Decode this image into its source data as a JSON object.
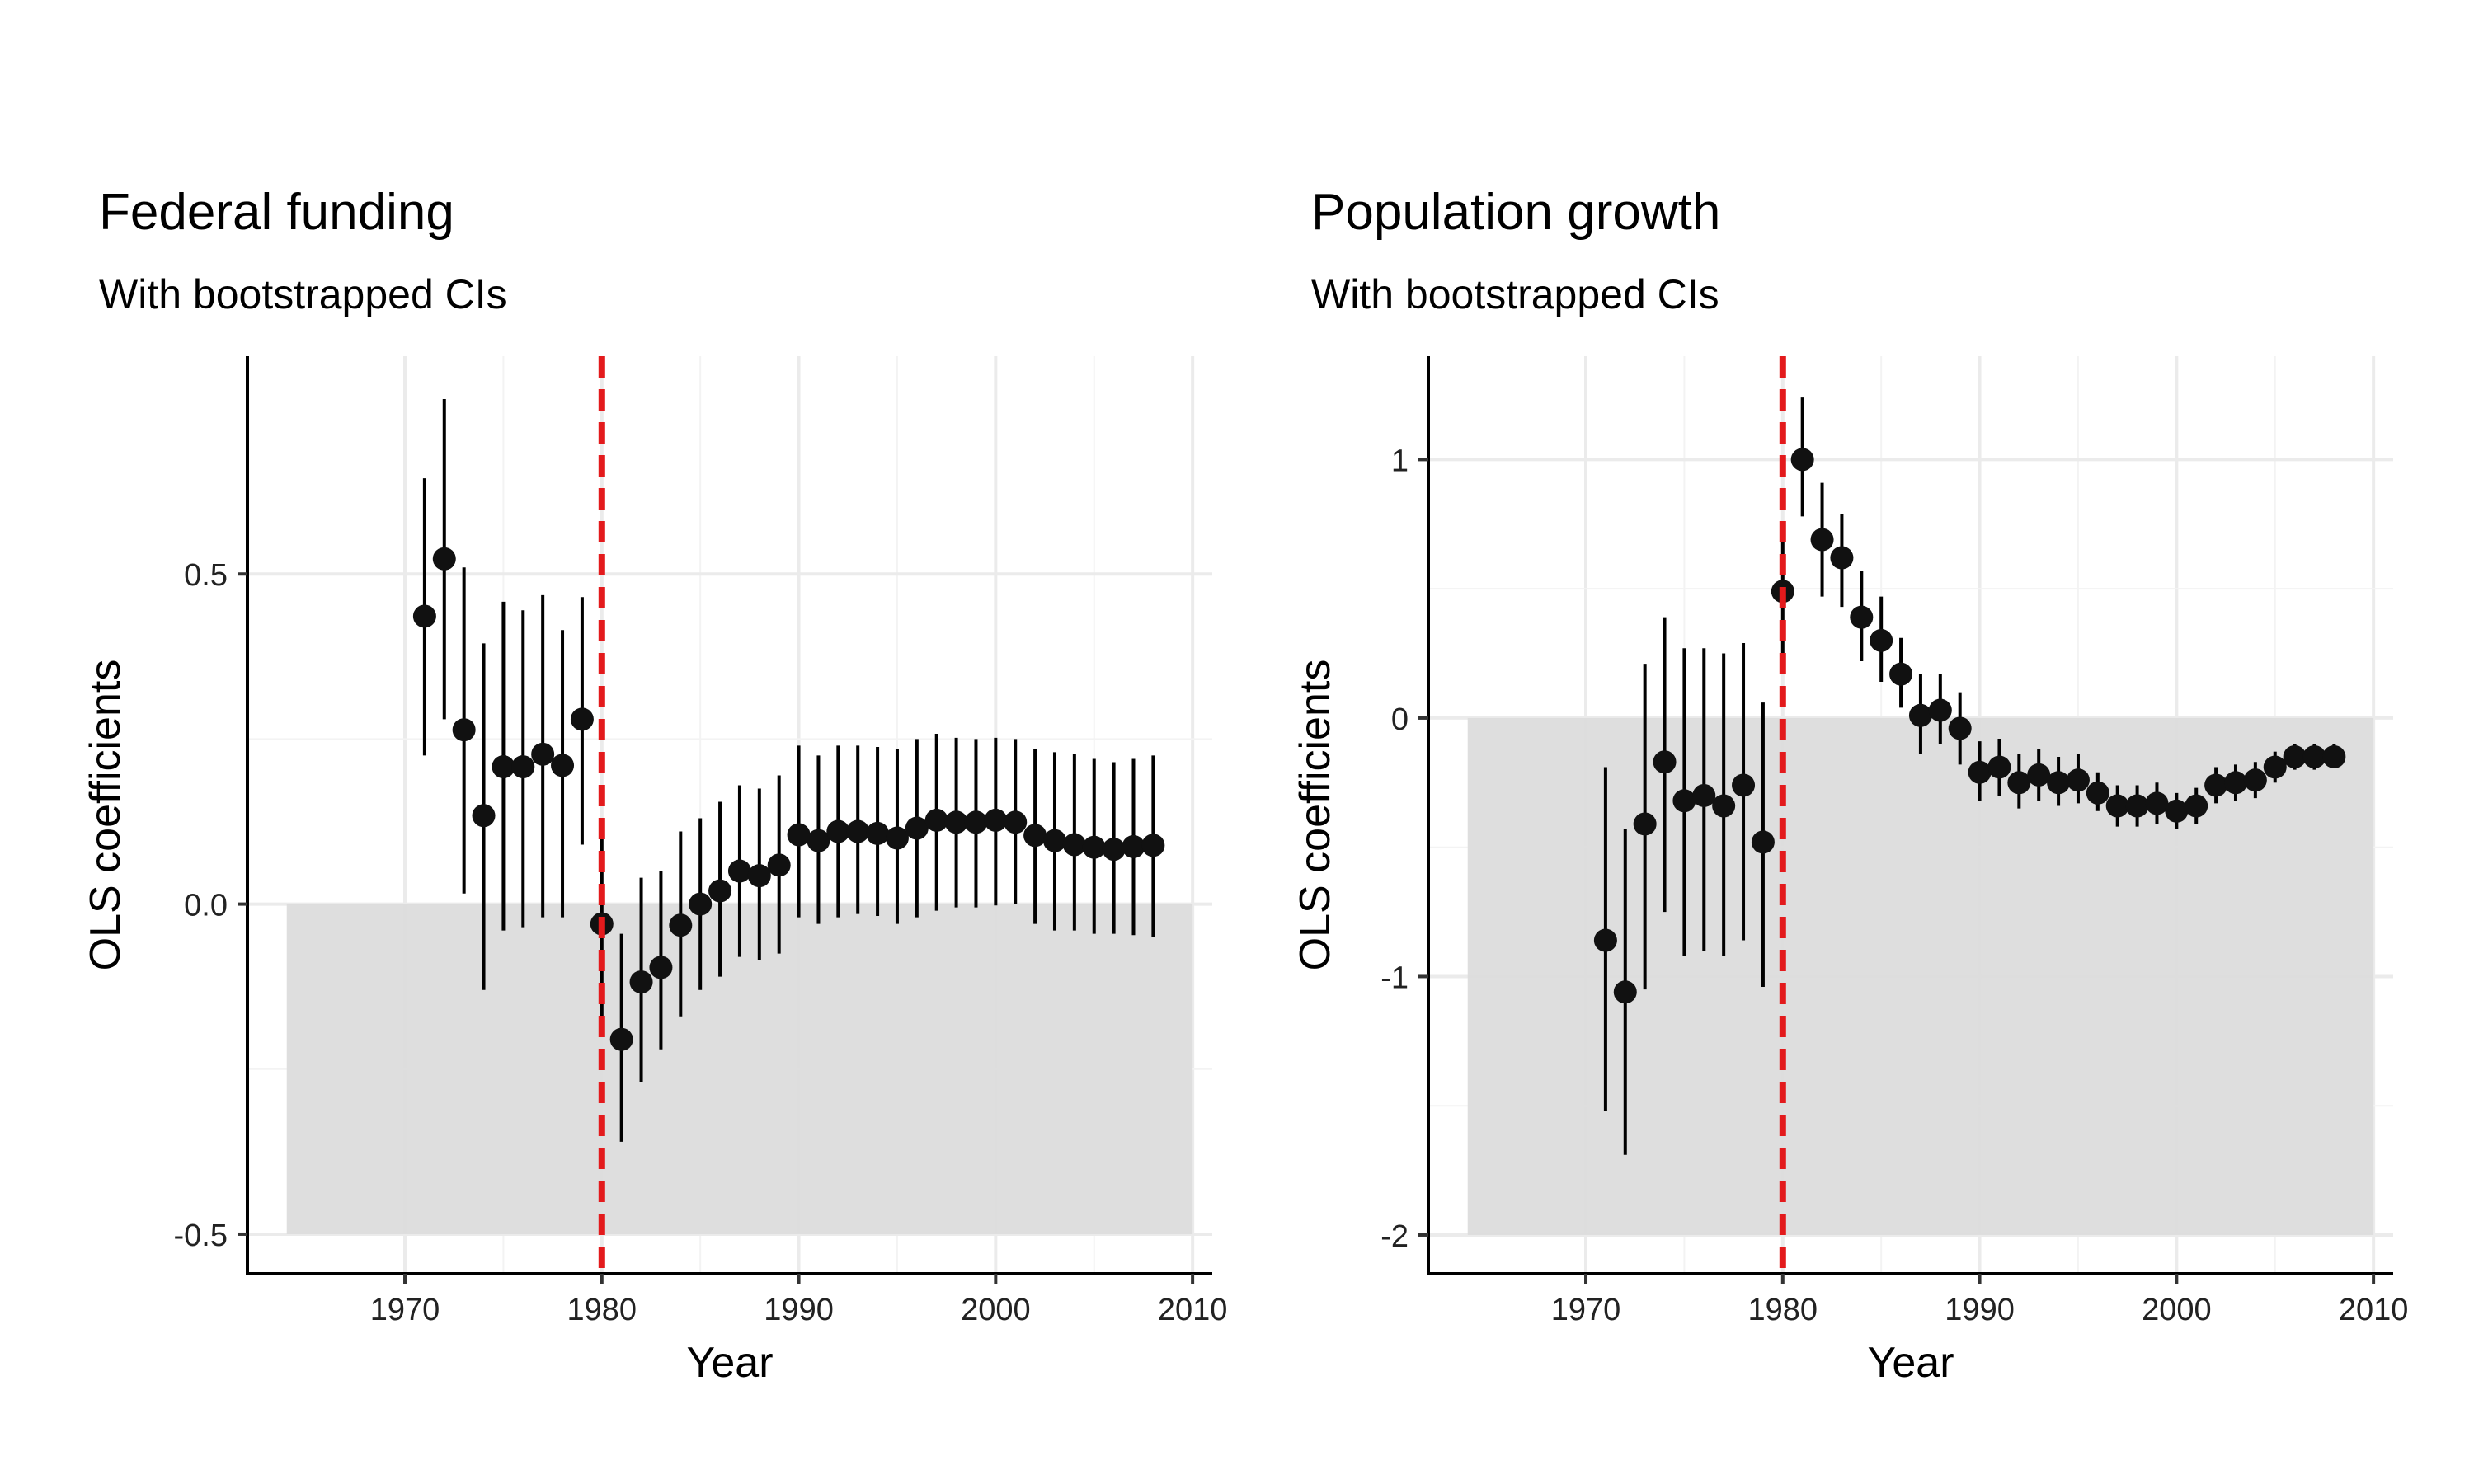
{
  "chart_data": [
    {
      "type": "scatter",
      "title": "Federal funding",
      "subtitle": "With bootstrapped CIs",
      "xlabel": "Year",
      "ylabel": "OLS coefficients",
      "xlim": [
        1962,
        2011
      ],
      "ylim": [
        -0.56,
        0.83
      ],
      "xticks": [
        1970,
        1980,
        1990,
        2000,
        2010
      ],
      "yticks": [
        -0.5,
        0.0,
        0.5
      ],
      "ytick_labels": [
        "-0.5",
        "0.0",
        "0.5"
      ],
      "grid": true,
      "vline": {
        "x": 1980,
        "color": "#e31a1c",
        "style": "dashed"
      },
      "shaded_region": {
        "x": [
          1964,
          2010
        ],
        "y": [
          -0.5,
          0.0
        ],
        "color": "#dcdcdc"
      },
      "series": [
        {
          "x": [
            1971,
            1972,
            1973,
            1974,
            1975,
            1976,
            1977,
            1978,
            1979,
            1980,
            1981,
            1982,
            1983,
            1984,
            1985,
            1986,
            1987,
            1988,
            1989,
            1990,
            1991,
            1992,
            1993,
            1994,
            1995,
            1996,
            1997,
            1998,
            1999,
            2000,
            2001,
            2002,
            2003,
            2004,
            2005,
            2006,
            2007,
            2008
          ],
          "y": [
            0.436,
            0.523,
            0.264,
            0.134,
            0.208,
            0.208,
            0.227,
            0.21,
            0.28,
            -0.03,
            -0.205,
            -0.118,
            -0.096,
            -0.032,
            0.0,
            0.02,
            0.05,
            0.043,
            0.059,
            0.105,
            0.096,
            0.11,
            0.11,
            0.107,
            0.1,
            0.115,
            0.127,
            0.124,
            0.124,
            0.127,
            0.124,
            0.104,
            0.096,
            0.09,
            0.086,
            0.083,
            0.087,
            0.089
          ],
          "ci_low": [
            0.225,
            0.28,
            0.016,
            -0.13,
            -0.04,
            -0.035,
            -0.02,
            -0.02,
            0.09,
            -0.2,
            -0.36,
            -0.27,
            -0.22,
            -0.17,
            -0.13,
            -0.11,
            -0.08,
            -0.085,
            -0.075,
            -0.02,
            -0.03,
            -0.02,
            -0.015,
            -0.018,
            -0.03,
            -0.02,
            -0.01,
            -0.005,
            -0.005,
            -0.002,
            0.0,
            -0.03,
            -0.04,
            -0.04,
            -0.045,
            -0.045,
            -0.047,
            -0.05
          ],
          "ci_high": [
            0.645,
            0.765,
            0.51,
            0.395,
            0.458,
            0.445,
            0.468,
            0.415,
            0.465,
            0.128,
            -0.045,
            0.04,
            0.05,
            0.11,
            0.13,
            0.155,
            0.18,
            0.175,
            0.195,
            0.24,
            0.225,
            0.24,
            0.24,
            0.238,
            0.235,
            0.25,
            0.258,
            0.252,
            0.25,
            0.252,
            0.25,
            0.235,
            0.23,
            0.228,
            0.22,
            0.215,
            0.22,
            0.225
          ]
        }
      ]
    },
    {
      "type": "scatter",
      "title": "Population growth",
      "subtitle": "With bootstrapped CIs",
      "xlabel": "Year",
      "ylabel": "OLS coefficients",
      "xlim": [
        1962,
        2011
      ],
      "ylim": [
        -2.15,
        1.4
      ],
      "xticks": [
        1970,
        1980,
        1990,
        2000,
        2010
      ],
      "yticks": [
        -2,
        -1,
        0,
        1
      ],
      "ytick_labels": [
        "-2",
        "-1",
        "0",
        "1"
      ],
      "grid": true,
      "vline": {
        "x": 1980,
        "color": "#e31a1c",
        "style": "dashed"
      },
      "shaded_region": {
        "x": [
          1964,
          2010
        ],
        "y": [
          -2.0,
          0.0
        ],
        "color": "#dcdcdc"
      },
      "series": [
        {
          "x": [
            1971,
            1972,
            1973,
            1974,
            1975,
            1976,
            1977,
            1978,
            1979,
            1980,
            1981,
            1982,
            1983,
            1984,
            1985,
            1986,
            1987,
            1988,
            1989,
            1990,
            1991,
            1992,
            1993,
            1994,
            1995,
            1996,
            1997,
            1998,
            1999,
            2000,
            2001,
            2002,
            2003,
            2004,
            2005,
            2006,
            2007,
            2008
          ],
          "y": [
            -0.86,
            -1.06,
            -0.41,
            -0.17,
            -0.32,
            -0.3,
            -0.34,
            -0.26,
            -0.48,
            0.49,
            1.0,
            0.69,
            0.62,
            0.39,
            0.3,
            0.17,
            0.01,
            0.03,
            -0.04,
            -0.21,
            -0.19,
            -0.25,
            -0.22,
            -0.25,
            -0.24,
            -0.29,
            -0.34,
            -0.34,
            -0.33,
            -0.36,
            -0.34,
            -0.26,
            -0.25,
            -0.24,
            -0.19,
            -0.15,
            -0.15,
            -0.15
          ],
          "ci_low": [
            -1.52,
            -1.69,
            -1.05,
            -0.75,
            -0.92,
            -0.9,
            -0.92,
            -0.86,
            -1.04,
            0.25,
            0.78,
            0.47,
            0.43,
            0.22,
            0.14,
            0.04,
            -0.14,
            -0.1,
            -0.18,
            -0.32,
            -0.3,
            -0.35,
            -0.32,
            -0.34,
            -0.33,
            -0.36,
            -0.42,
            -0.42,
            -0.41,
            -0.43,
            -0.41,
            -0.33,
            -0.32,
            -0.31,
            -0.25,
            -0.2,
            -0.2,
            -0.19
          ],
          "ci_high": [
            -0.19,
            -0.43,
            0.21,
            0.39,
            0.27,
            0.27,
            0.25,
            0.29,
            0.06,
            0.76,
            1.24,
            0.91,
            0.79,
            0.57,
            0.47,
            0.31,
            0.17,
            0.17,
            0.1,
            -0.09,
            -0.08,
            -0.14,
            -0.12,
            -0.15,
            -0.14,
            -0.21,
            -0.26,
            -0.26,
            -0.25,
            -0.29,
            -0.27,
            -0.19,
            -0.18,
            -0.17,
            -0.13,
            -0.1,
            -0.1,
            -0.1
          ]
        }
      ]
    }
  ]
}
